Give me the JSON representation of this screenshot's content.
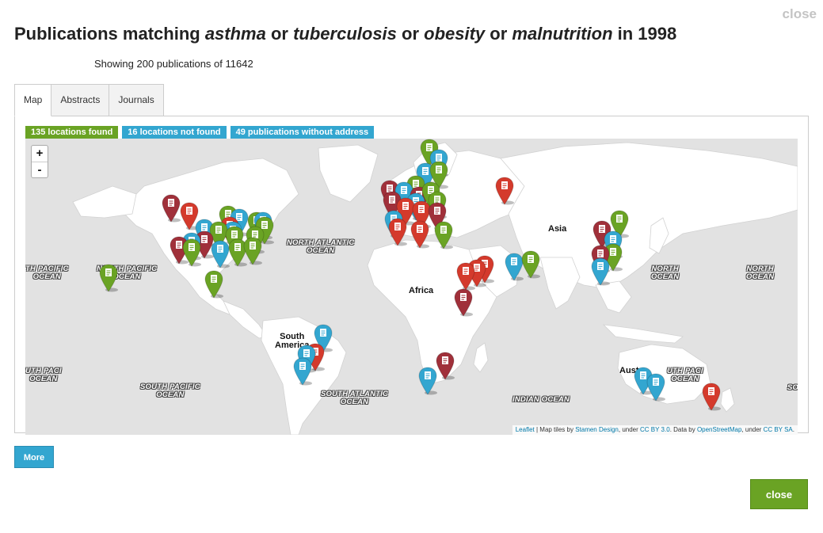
{
  "header": {
    "close_label": "close",
    "title_prefix": "Publications matching ",
    "terms": [
      "asthma",
      "tuberculosis",
      "obesity",
      "malnutrition"
    ],
    "connector": " or ",
    "title_suffix": " in 1998",
    "showing": "Showing 200 publications of 11642"
  },
  "tabs": [
    {
      "label": "Map",
      "active": true
    },
    {
      "label": "Abstracts",
      "active": false
    },
    {
      "label": "Journals",
      "active": false
    }
  ],
  "badges": {
    "found": "135 locations found",
    "not_found": "16 locations not found",
    "no_address": "49 publications without address"
  },
  "map": {
    "zoom_in": "+",
    "zoom_out": "-",
    "labels": {
      "north_atlantic": "NORTH ATLANTIC\nOCEAN",
      "north_pacific": "NORTH PACIFIC\nOCEAN",
      "south_pacific": "SOUTH PACIFIC\nOCEAN",
      "south_atlantic": "SOUTH ATLANTIC\nOCEAN",
      "indian": "INDIAN OCEAN",
      "africa": "Africa",
      "asia": "Asia",
      "south_america": "South\nAmerica",
      "australia": "Austr",
      "north_america_partial": "rth",
      "north_pacific_left": "TH PACIFIC\nOCEAN",
      "north_pacific_right": "NORTH\nOCEAN",
      "south_pacific_left": "UTH PACI\nOCEAN",
      "south_edge": "SO"
    },
    "attribution": {
      "leaflet": "Leaflet",
      "tiles": " | Map tiles by ",
      "stamen": "Stamen Design",
      "under": ", under ",
      "ccby": "CC BY 3.0",
      "data": ". Data by ",
      "osm": "OpenStreetMap",
      "under2": ", under ",
      "ccbysa": "CC BY SA",
      "end": "."
    },
    "colors": {
      "green": "#6aa324",
      "blue": "#33a6d0",
      "red": "#d43a2c",
      "darkred": "#a0303a"
    }
  },
  "buttons": {
    "more": "More",
    "close": "close"
  }
}
